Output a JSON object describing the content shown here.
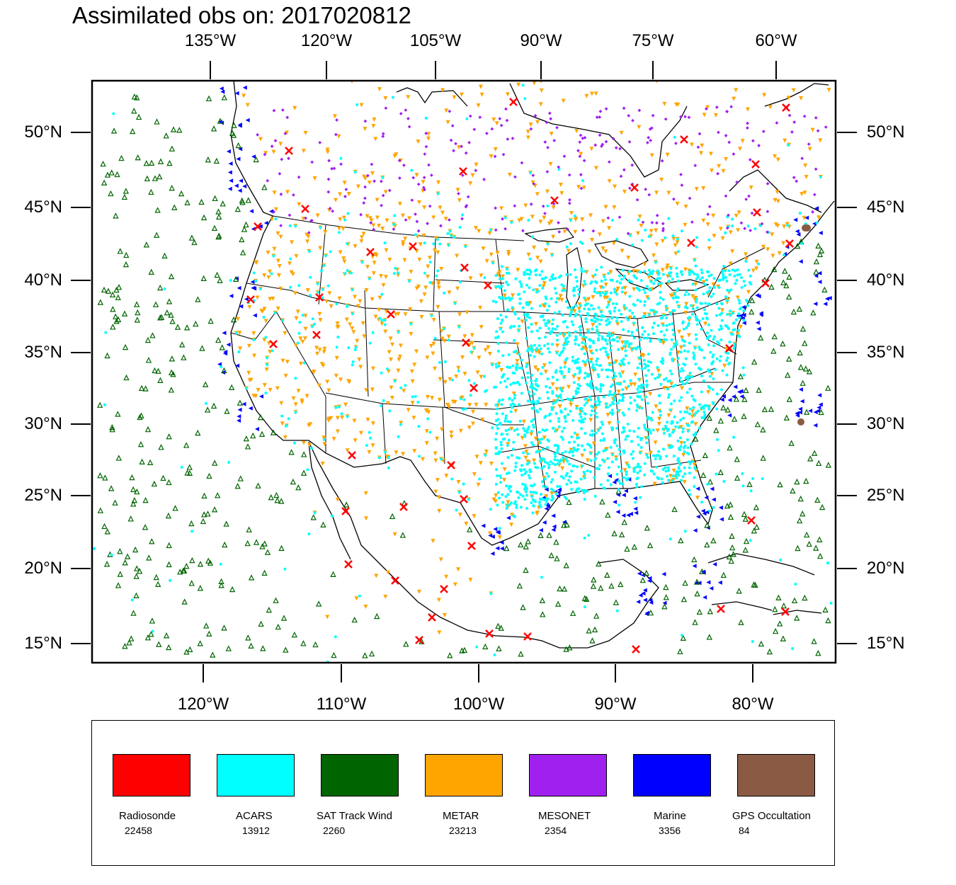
{
  "title": "Assimilated obs on: 2017020812",
  "axes": {
    "top_lon_labels": [
      "135°W",
      "120°W",
      "105°W",
      "90°W",
      "75°W",
      "60°W"
    ],
    "bottom_lon_labels": [
      "120°W",
      "110°W",
      "100°W",
      "90°W",
      "80°W"
    ],
    "left_lat_labels": [
      "50°N",
      "45°N",
      "40°N",
      "35°N",
      "30°N",
      "25°N",
      "20°N",
      "15°N"
    ],
    "right_lat_labels": [
      "50°N",
      "45°N",
      "40°N",
      "35°N",
      "30°N",
      "25°N",
      "20°N",
      "15°N"
    ]
  },
  "legend": {
    "items": [
      {
        "name": "Radiosonde",
        "count": "22458",
        "color": "#ff0000",
        "marker": "x-mark"
      },
      {
        "name": "ACARS",
        "count": "13912",
        "color": "#00ffff",
        "marker": "dot"
      },
      {
        "name": "SAT Track Wind",
        "count": "2260",
        "color": "#006400",
        "marker": "triangle-up"
      },
      {
        "name": "METAR",
        "count": "23213",
        "color": "#ffa500",
        "marker": "triangle-down"
      },
      {
        "name": "MESONET",
        "count": "2354",
        "color": "#a020f0",
        "marker": "diamond"
      },
      {
        "name": "Marine",
        "count": "3356",
        "color": "#0000ff",
        "marker": "triangle-left"
      },
      {
        "name": "GPS Occultation",
        "count": "84",
        "color": "#8b5a44",
        "marker": "circle"
      }
    ]
  },
  "map_features": {
    "boundaries": [
      "coastline-icon",
      "us-state-borders-icon",
      "country-borders-icon"
    ],
    "frame": "black"
  }
}
